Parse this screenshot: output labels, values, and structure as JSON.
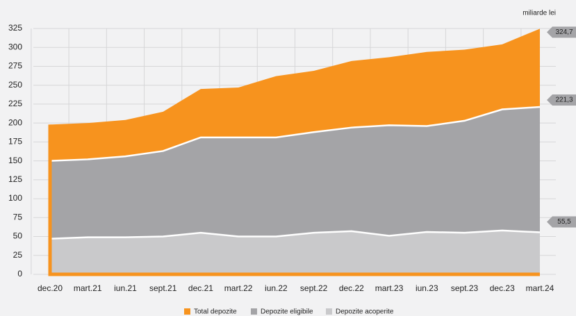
{
  "chart_data": {
    "type": "area",
    "unit_label": "miliarde lei",
    "categories": [
      "dec.20",
      "mart.21",
      "iun.21",
      "sept.21",
      "dec.21",
      "mart.22",
      "iun.22",
      "sept.22",
      "dec.22",
      "mart.23",
      "iun.23",
      "sept.23",
      "dec.23",
      "mart.24"
    ],
    "series": [
      {
        "name": "Total depozite",
        "color": "#f7931e",
        "values": [
          198,
          200,
          204,
          215,
          245,
          247,
          262,
          269,
          282,
          287,
          294,
          297,
          304,
          324.7
        ],
        "end_label": "324,7"
      },
      {
        "name": "Depozite eligibile",
        "color": "#a4a4a7",
        "values": [
          150,
          152,
          156,
          163,
          181,
          181,
          181,
          188,
          194,
          197,
          196,
          203,
          218,
          221.3
        ],
        "end_label": "221,3"
      },
      {
        "name": "Depozite acoperite",
        "color": "#c9c9cb",
        "values": [
          47,
          49,
          49,
          50,
          55,
          50,
          50,
          55,
          57,
          51,
          56,
          55,
          58,
          55.5
        ],
        "end_label": "55,5"
      }
    ],
    "ylim": [
      0,
      325
    ],
    "yticks": [
      0,
      25,
      50,
      75,
      100,
      125,
      150,
      175,
      200,
      225,
      250,
      275,
      300,
      325
    ],
    "grid": true
  }
}
